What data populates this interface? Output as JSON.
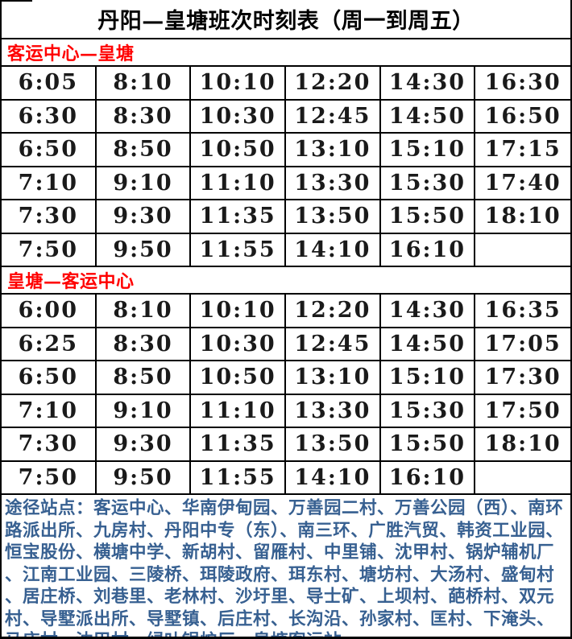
{
  "title": "丹阳—皇塘班次时刻表（周一到周五）",
  "colors": {
    "heading_red": "#ff0000",
    "route_blue": "#376091",
    "border_black": "#000000"
  },
  "sections": [
    {
      "heading": "客运中心—皇塘",
      "rows": [
        [
          "6:05",
          "8:10",
          "10:10",
          "12:20",
          "14:30",
          "16:30"
        ],
        [
          "6:30",
          "8:30",
          "10:30",
          "12:45",
          "14:50",
          "16:50"
        ],
        [
          "6:50",
          "8:50",
          "10:50",
          "13:10",
          "15:10",
          "17:15"
        ],
        [
          "7:10",
          "9:10",
          "11:10",
          "13:30",
          "15:30",
          "17:40"
        ],
        [
          "7:30",
          "9:30",
          "11:35",
          "13:50",
          "15:50",
          "18:10"
        ],
        [
          "7:50",
          "9:50",
          "11:55",
          "14:10",
          "16:10",
          ""
        ]
      ]
    },
    {
      "heading": "皇塘—客运中心",
      "rows": [
        [
          "6:00",
          "8:10",
          "10:10",
          "12:20",
          "14:30",
          "16:35"
        ],
        [
          "6:25",
          "8:30",
          "10:30",
          "12:45",
          "14:50",
          "17:05"
        ],
        [
          "6:50",
          "8:50",
          "10:50",
          "13:10",
          "15:10",
          "17:30"
        ],
        [
          "7:10",
          "9:10",
          "11:10",
          "13:30",
          "15:30",
          "17:50"
        ],
        [
          "7:30",
          "9:30",
          "11:35",
          "13:50",
          "15:50",
          "18:10"
        ],
        [
          "7:50",
          "9:50",
          "11:55",
          "14:10",
          "16:10",
          ""
        ]
      ]
    }
  ],
  "footer": {
    "label": "途径站点：",
    "separator": "、",
    "stops": [
      "客运中心",
      "华南伊甸园",
      "万善园二村",
      "万善公园（西）",
      "南环路派出所",
      "九房村",
      "丹阳中专（东）",
      "南三环",
      "广胜汽贸",
      "韩资工业园",
      "恒宝股份",
      "横塘中学",
      "新胡村",
      "留雁村",
      "中里铺",
      "沈甲村",
      "锅炉辅机厂",
      "江南工业园",
      "三陵桥",
      "珥陵政府",
      "珥东村",
      "塘坊村",
      "大汤村",
      "盛甸村",
      "居庄桥",
      "刘巷里",
      "老林村",
      "沙圩里",
      "导士矿",
      "上坝村",
      "葩桥村",
      "双元村",
      "导墅派出所",
      "导墅镇",
      "后庄村",
      "长沟沿",
      "孙家村",
      "匡村",
      "下淹头",
      "马庄村",
      "沈甲村",
      "绿叶锅炉厂",
      "皇塘客运站"
    ]
  }
}
